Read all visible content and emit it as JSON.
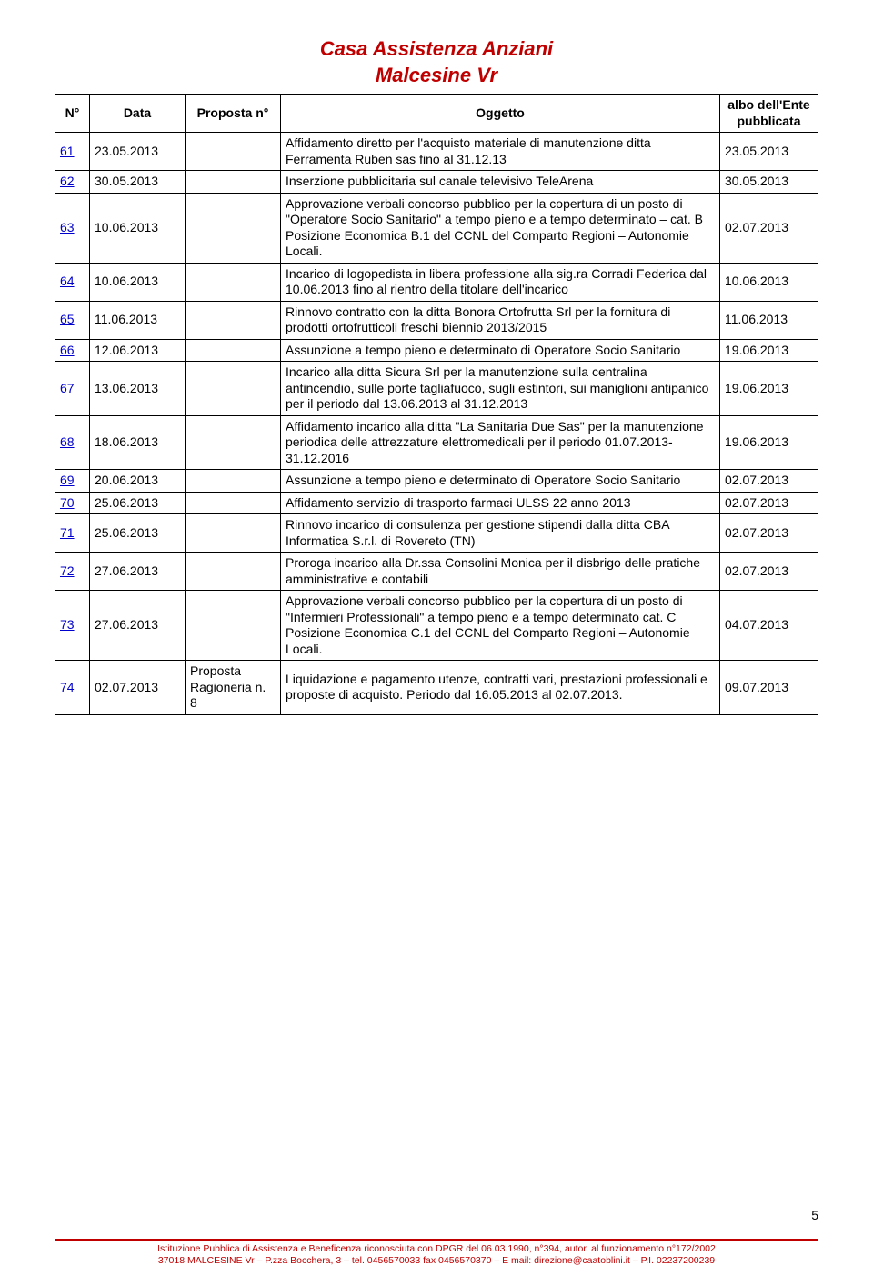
{
  "header": {
    "line1": "Casa Assistenza Anziani",
    "line2": "Malcesine Vr"
  },
  "columns": {
    "n": "N°",
    "data": "Data",
    "proposta": "Proposta n°",
    "oggetto": "Oggetto",
    "pub": "albo dell'Ente pubblicata"
  },
  "rows": [
    {
      "n": "61",
      "data": "23.05.2013",
      "prop": "",
      "ogg": "Affidamento diretto per l'acquisto materiale di manutenzione ditta Ferramenta Ruben sas fino al 31.12.13",
      "pub": "23.05.2013"
    },
    {
      "n": "62",
      "data": "30.05.2013",
      "prop": "",
      "ogg": "Inserzione pubblicitaria sul canale televisivo TeleArena",
      "pub": "30.05.2013"
    },
    {
      "n": "63",
      "data": "10.06.2013",
      "prop": "",
      "ogg": "Approvazione verbali concorso pubblico per la copertura di un posto di \"Operatore Socio Sanitario\" a tempo pieno e a tempo determinato – cat. B Posizione Economica B.1 del CCNL del Comparto Regioni – Autonomie Locali.",
      "pub": "02.07.2013"
    },
    {
      "n": "64",
      "data": "10.06.2013",
      "prop": "",
      "ogg": "Incarico di logopedista in libera professione alla sig.ra Corradi Federica dal 10.06.2013 fino al rientro della titolare dell'incarico",
      "pub": "10.06.2013"
    },
    {
      "n": "65",
      "data": "11.06.2013",
      "prop": "",
      "ogg": "Rinnovo contratto con la ditta Bonora Ortofrutta Srl per la fornitura di prodotti ortofrutticoli freschi biennio 2013/2015",
      "pub": "11.06.2013"
    },
    {
      "n": "66",
      "data": "12.06.2013",
      "prop": "",
      "ogg": "Assunzione a tempo pieno e determinato di Operatore Socio Sanitario",
      "pub": "19.06.2013"
    },
    {
      "n": "67",
      "data": "13.06.2013",
      "prop": "",
      "ogg": "Incarico alla ditta Sicura Srl per la manutenzione sulla centralina antincendio, sulle porte tagliafuoco, sugli estintori, sui maniglioni antipanico per il periodo dal 13.06.2013 al 31.12.2013",
      "pub": "19.06.2013"
    },
    {
      "n": "68",
      "data": "18.06.2013",
      "prop": "",
      "ogg": "Affidamento incarico alla ditta \"La Sanitaria Due Sas\" per la manutenzione periodica delle attrezzature elettromedicali per il periodo 01.07.2013- 31.12.2016",
      "pub": "19.06.2013"
    },
    {
      "n": "69",
      "data": "20.06.2013",
      "prop": "",
      "ogg": "Assunzione a tempo pieno e determinato di Operatore Socio Sanitario",
      "pub": "02.07.2013"
    },
    {
      "n": "70",
      "data": "25.06.2013",
      "prop": "",
      "ogg": "Affidamento servizio di trasporto farmaci ULSS 22 anno 2013",
      "pub": "02.07.2013"
    },
    {
      "n": "71",
      "data": "25.06.2013",
      "prop": "",
      "ogg": "Rinnovo incarico di consulenza per gestione stipendi dalla ditta CBA Informatica S.r.l. di Rovereto (TN)",
      "pub": "02.07.2013"
    },
    {
      "n": "72",
      "data": "27.06.2013",
      "prop": "",
      "ogg": "Proroga incarico alla Dr.ssa Consolini Monica per il disbrigo delle pratiche amministrative e contabili",
      "pub": "02.07.2013"
    },
    {
      "n": "73",
      "data": "27.06.2013",
      "prop": "",
      "ogg": "Approvazione verbali concorso pubblico per la copertura di un posto di \"Infermieri Professionali\" a tempo pieno e a tempo determinato cat. C Posizione Economica C.1 del CCNL del Comparto Regioni – Autonomie Locali.",
      "pub": "04.07.2013"
    },
    {
      "n": "74",
      "data": "02.07.2013",
      "prop": "Proposta Ragioneria n. 8",
      "ogg": "Liquidazione e pagamento utenze, contratti vari, prestazioni professionali e proposte di acquisto. Periodo dal 16.05.2013 al 02.07.2013.",
      "pub": "09.07.2013"
    }
  ],
  "page_number": "5",
  "footer": {
    "line1": "Istituzione Pubblica di Assistenza e Beneficenza riconosciuta con DPGR del 06.03.1990, n°394, autor. al funzionamento n°172/2002",
    "line2": "37018 MALCESINE Vr – P.zza Bocchera, 3 – tel. 0456570033 fax 0456570370 – E mail: direzione@caatoblini.it – P.I. 02237200239"
  }
}
